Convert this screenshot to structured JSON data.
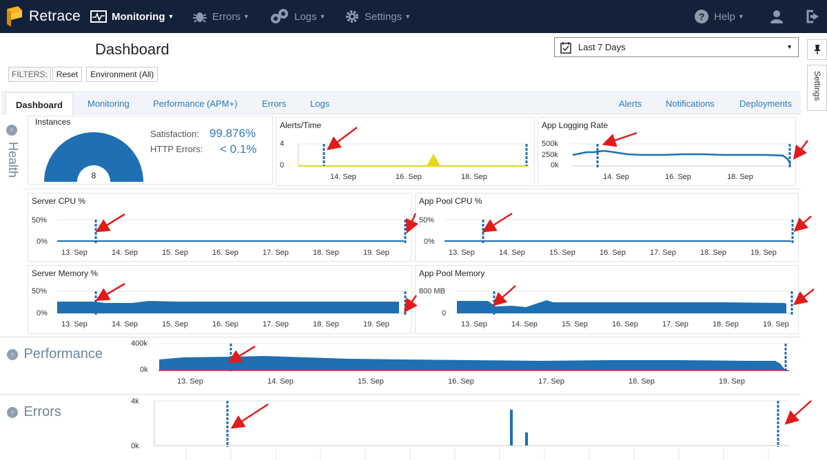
{
  "brand": {
    "name": "Retrace"
  },
  "nav": {
    "monitoring": "Monitoring",
    "errors": "Errors",
    "logs": "Logs",
    "settings": "Settings",
    "help": "Help"
  },
  "page": {
    "title": "Dashboard"
  },
  "filters": {
    "label": "FILTERS:",
    "reset": "Reset",
    "environment": "Environment (All)"
  },
  "date_range": {
    "selected": "Last 7 Days"
  },
  "right_rail": {
    "settings": "Settings"
  },
  "tabs": {
    "dashboard": "Dashboard",
    "monitoring": "Monitoring",
    "performance": "Performance (APM+)",
    "errors": "Errors",
    "logs": "Logs",
    "alerts": "Alerts",
    "notifications": "Notifications",
    "deployments": "Deployments"
  },
  "health": {
    "label": "Health",
    "instances": {
      "title": "Instances",
      "count": "8"
    },
    "satisfaction": {
      "label": "Satisfaction:",
      "value": "99.876%"
    },
    "http_errors": {
      "label": "HTTP Errors:",
      "value": "< 0.1%"
    },
    "alerts_time": {
      "title": "Alerts/Time",
      "y_ticks": [
        "4",
        "0"
      ],
      "x_ticks": [
        "14. Sep",
        "16. Sep",
        "18. Sep"
      ]
    },
    "app_logging": {
      "title": "App Logging Rate",
      "y_ticks": [
        "500k",
        "250k",
        "0k"
      ],
      "x_ticks": [
        "14. Sep",
        "16. Sep",
        "18. Sep"
      ]
    },
    "server_cpu": {
      "title": "Server CPU %",
      "y_ticks": [
        "50%",
        "0%"
      ]
    },
    "app_pool_cpu": {
      "title": "App Pool CPU %",
      "y_ticks": [
        "50%",
        "0%"
      ]
    },
    "server_mem": {
      "title": "Server Memory %",
      "y_ticks": [
        "50%",
        "0%"
      ]
    },
    "app_pool_mem": {
      "title": "App Pool Memory",
      "y_ticks": [
        "800 MB",
        "0"
      ]
    },
    "week_ticks": [
      "13. Sep",
      "14. Sep",
      "15. Sep",
      "16. Sep",
      "17. Sep",
      "18. Sep",
      "19. Sep"
    ]
  },
  "performance": {
    "label": "Performance",
    "y_ticks": [
      "400k",
      "0k"
    ]
  },
  "errors_section": {
    "label": "Errors",
    "y_ticks": [
      "4k",
      "0k"
    ]
  },
  "colors": {
    "nav_bg": "#13213a",
    "accent": "#1f6fb2",
    "link": "#2d7bb5",
    "arrow": "#e01b1b",
    "alert_yellow": "#e3d91c"
  },
  "chart_data": [
    {
      "type": "area",
      "title": "App Logging Rate",
      "x": [
        "13. Sep",
        "14. Sep",
        "15. Sep",
        "16. Sep",
        "17. Sep",
        "18. Sep",
        "19. Sep"
      ],
      "values": [
        250000,
        300000,
        260000,
        250000,
        255000,
        250000,
        240000
      ],
      "ylim": [
        0,
        500000
      ]
    },
    {
      "type": "area",
      "title": "Server CPU %",
      "x": [
        "13. Sep",
        "14. Sep",
        "15. Sep",
        "16. Sep",
        "17. Sep",
        "18. Sep",
        "19. Sep"
      ],
      "values": [
        1,
        1,
        1,
        1,
        1,
        1,
        1
      ],
      "ylim": [
        0,
        100
      ]
    },
    {
      "type": "area",
      "title": "Server Memory %",
      "x": [
        "13. Sep",
        "14. Sep",
        "15. Sep",
        "16. Sep",
        "17. Sep",
        "18. Sep",
        "19. Sep"
      ],
      "values": [
        28,
        25,
        27,
        27,
        27,
        27,
        27
      ],
      "ylim": [
        0,
        100
      ]
    },
    {
      "type": "area",
      "title": "App Pool Memory",
      "x": [
        "13. Sep",
        "14. Sep",
        "15. Sep",
        "16. Sep",
        "17. Sep",
        "18. Sep",
        "19. Sep"
      ],
      "values": [
        450,
        300,
        400,
        400,
        400,
        400,
        400
      ],
      "ylim": [
        0,
        1600
      ]
    },
    {
      "type": "area",
      "title": "Performance",
      "x": [
        "13. Sep",
        "14. Sep",
        "15. Sep",
        "16. Sep",
        "17. Sep",
        "18. Sep",
        "19. Sep"
      ],
      "values": [
        300000,
        330000,
        310000,
        300000,
        300000,
        300000,
        300000
      ],
      "ylim": [
        0,
        800000
      ]
    },
    {
      "type": "bar",
      "title": "Errors",
      "x": [
        "16. Sep",
        "16. Sep"
      ],
      "values": [
        3200,
        1200
      ],
      "ylim": [
        0,
        4000
      ]
    }
  ]
}
